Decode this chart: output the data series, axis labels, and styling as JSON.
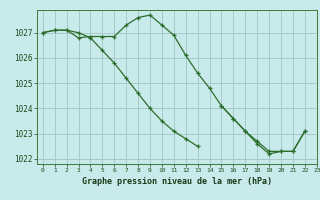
{
  "background_color": "#c8eaea",
  "grid_color": "#a8caca",
  "line_color": "#2d6e2d",
  "marker_color": "#2d6e2d",
  "xlabel": "Graphe pression niveau de la mer (hPa)",
  "xlim": [
    -0.5,
    23
  ],
  "ylim": [
    1021.8,
    1027.9
  ],
  "yticks": [
    1022,
    1023,
    1024,
    1025,
    1026,
    1027
  ],
  "xticks": [
    0,
    1,
    2,
    3,
    4,
    5,
    6,
    7,
    8,
    9,
    10,
    11,
    12,
    13,
    14,
    15,
    16,
    17,
    18,
    19,
    20,
    21,
    22,
    23
  ],
  "series1": [
    1027.0,
    1027.1,
    1027.1,
    1026.8,
    1026.85,
    1026.85,
    1026.85,
    1027.3,
    1027.6,
    1027.7,
    1027.3,
    1026.9,
    1026.1,
    1025.4,
    1024.8,
    1024.1,
    1023.6,
    1023.1,
    1022.6,
    1022.2,
    1022.3,
    1022.3,
    1023.1,
    null
  ],
  "series2": [
    1027.0,
    1027.1,
    1027.1,
    1027.0,
    1026.8,
    1026.3,
    1025.8,
    1025.2,
    1024.6,
    1024.0,
    1023.5,
    1023.1,
    1022.8,
    1022.5,
    null,
    null,
    null,
    null,
    null,
    null,
    null,
    null,
    null,
    null
  ],
  "series3": [
    null,
    null,
    null,
    null,
    null,
    null,
    null,
    null,
    null,
    null,
    null,
    null,
    null,
    null,
    null,
    1024.1,
    1023.6,
    1023.1,
    1022.7,
    1022.3,
    1022.3,
    1022.3,
    1023.1,
    null
  ]
}
